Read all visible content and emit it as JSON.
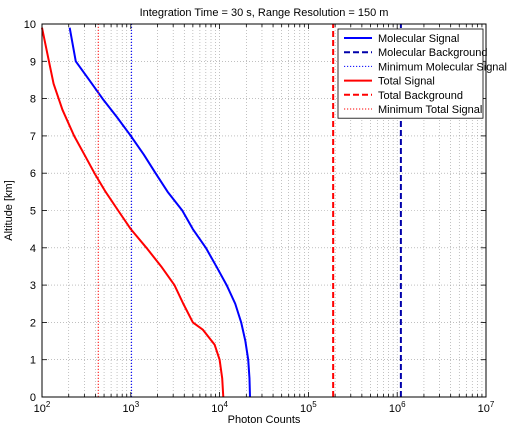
{
  "chart_data": {
    "type": "line",
    "title": "Integration Time = 30 s, Range Resolution = 150 m",
    "xlabel": "Photon Counts",
    "ylabel": "Altitude [km]",
    "xscale": "log",
    "xlim": [
      100,
      10000000
    ],
    "ylim": [
      0,
      10
    ],
    "grid": "on",
    "legend_position": "top-right",
    "x_ticks": [
      {
        "value": 100,
        "base": "10",
        "exp": "2"
      },
      {
        "value": 1000,
        "base": "10",
        "exp": "3"
      },
      {
        "value": 10000,
        "base": "10",
        "exp": "4"
      },
      {
        "value": 100000,
        "base": "10",
        "exp": "5"
      },
      {
        "value": 1000000,
        "base": "10",
        "exp": "6"
      },
      {
        "value": 10000000,
        "base": "10",
        "exp": "7"
      }
    ],
    "y_ticks": [
      "0",
      "1",
      "2",
      "3",
      "4",
      "5",
      "6",
      "7",
      "8",
      "9",
      "10"
    ],
    "series": [
      {
        "name": "Molecular Signal",
        "color": "#0000ff",
        "style": "solid",
        "x": [
          22000,
          21700,
          21000,
          19500,
          17500,
          15000,
          12000,
          9200,
          7000,
          5000,
          3800,
          2600,
          1900,
          1400,
          1000,
          700,
          480,
          340,
          240,
          205
        ],
        "y": [
          0,
          0.5,
          1.0,
          1.5,
          2.0,
          2.5,
          3.0,
          3.5,
          4.0,
          4.5,
          5.0,
          5.5,
          6.0,
          6.5,
          7.0,
          7.5,
          8.0,
          8.5,
          9.0,
          9.9
        ]
      },
      {
        "name": "Molecular Background",
        "color": "#0000aa",
        "style": "dashed",
        "x": [
          1100000,
          1100000
        ],
        "y": [
          0,
          10
        ]
      },
      {
        "name": "Minimum Molecular Signal",
        "color": "#0000ff",
        "style": "dotted",
        "x": [
          1020,
          1020
        ],
        "y": [
          0,
          10
        ]
      },
      {
        "name": "Total Signal",
        "color": "#ff0000",
        "style": "solid",
        "x": [
          11000,
          10700,
          10000,
          8800,
          6500,
          5000,
          3900,
          3100,
          2200,
          1500,
          1000,
          720,
          520,
          390,
          300,
          230,
          170,
          135,
          115,
          100
        ],
        "y": [
          0,
          0.5,
          1.0,
          1.4,
          1.8,
          2.0,
          2.5,
          3.0,
          3.5,
          4.0,
          4.5,
          5.0,
          5.5,
          6.0,
          6.5,
          7.0,
          7.7,
          8.4,
          9.2,
          9.9
        ]
      },
      {
        "name": "Total Background",
        "color": "#ff0000",
        "style": "dashed",
        "x": [
          190000,
          190000
        ],
        "y": [
          0,
          10
        ]
      },
      {
        "name": "Minimum Total Signal",
        "color": "#ff0000",
        "style": "dotted",
        "x": [
          430,
          430
        ],
        "y": [
          0,
          10
        ]
      }
    ]
  }
}
